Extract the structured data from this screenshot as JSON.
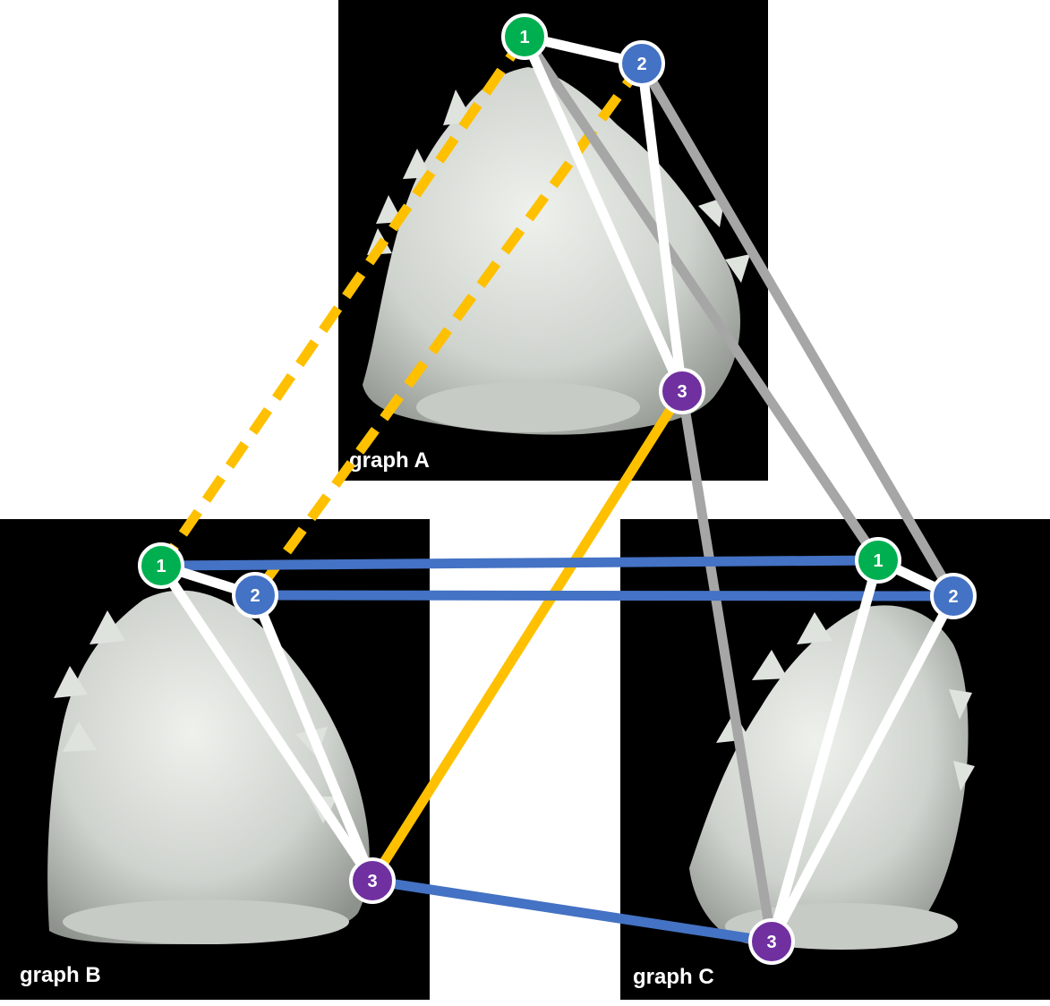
{
  "colors": {
    "background": "#ffffff",
    "panel": "#000000",
    "statue": "#d9ddd8",
    "statue_shadow": "#9ea39d",
    "edge_white": "#ffffff",
    "edge_gray": "#a6a6a6",
    "edge_blue": "#4472c4",
    "edge_yellow": "#ffc000",
    "node_1": "#00b050",
    "node_2": "#4472c4",
    "node_3": "#7030a0"
  },
  "graphs": [
    {
      "id": "A",
      "label": "graph A",
      "nodes": [
        "1",
        "2",
        "3"
      ]
    },
    {
      "id": "B",
      "label": "graph B",
      "nodes": [
        "1",
        "2",
        "3"
      ]
    },
    {
      "id": "C",
      "label": "graph C",
      "nodes": [
        "1",
        "2",
        "3"
      ]
    }
  ],
  "intra_edges": [
    {
      "graph": "A",
      "from": "1",
      "to": "2"
    },
    {
      "graph": "A",
      "from": "1",
      "to": "3"
    },
    {
      "graph": "A",
      "from": "2",
      "to": "3"
    },
    {
      "graph": "B",
      "from": "1",
      "to": "2"
    },
    {
      "graph": "B",
      "from": "1",
      "to": "3"
    },
    {
      "graph": "B",
      "from": "2",
      "to": "3"
    },
    {
      "graph": "C",
      "from": "1",
      "to": "2"
    },
    {
      "graph": "C",
      "from": "1",
      "to": "3"
    },
    {
      "graph": "C",
      "from": "2",
      "to": "3"
    }
  ],
  "cross_edges": [
    {
      "from": "A1",
      "to": "B1",
      "color": "yellow",
      "dashed": true
    },
    {
      "from": "A2",
      "to": "B2",
      "color": "yellow",
      "dashed": true
    },
    {
      "from": "A3",
      "to": "B3",
      "color": "yellow",
      "dashed": false
    },
    {
      "from": "A1",
      "to": "C1",
      "color": "gray",
      "dashed": false
    },
    {
      "from": "A2",
      "to": "C2",
      "color": "gray",
      "dashed": false
    },
    {
      "from": "A3",
      "to": "C3",
      "color": "gray",
      "dashed": false
    },
    {
      "from": "B1",
      "to": "C1",
      "color": "blue",
      "dashed": false
    },
    {
      "from": "B2",
      "to": "C2",
      "color": "blue",
      "dashed": false
    },
    {
      "from": "B3",
      "to": "C3",
      "color": "blue",
      "dashed": false
    }
  ]
}
